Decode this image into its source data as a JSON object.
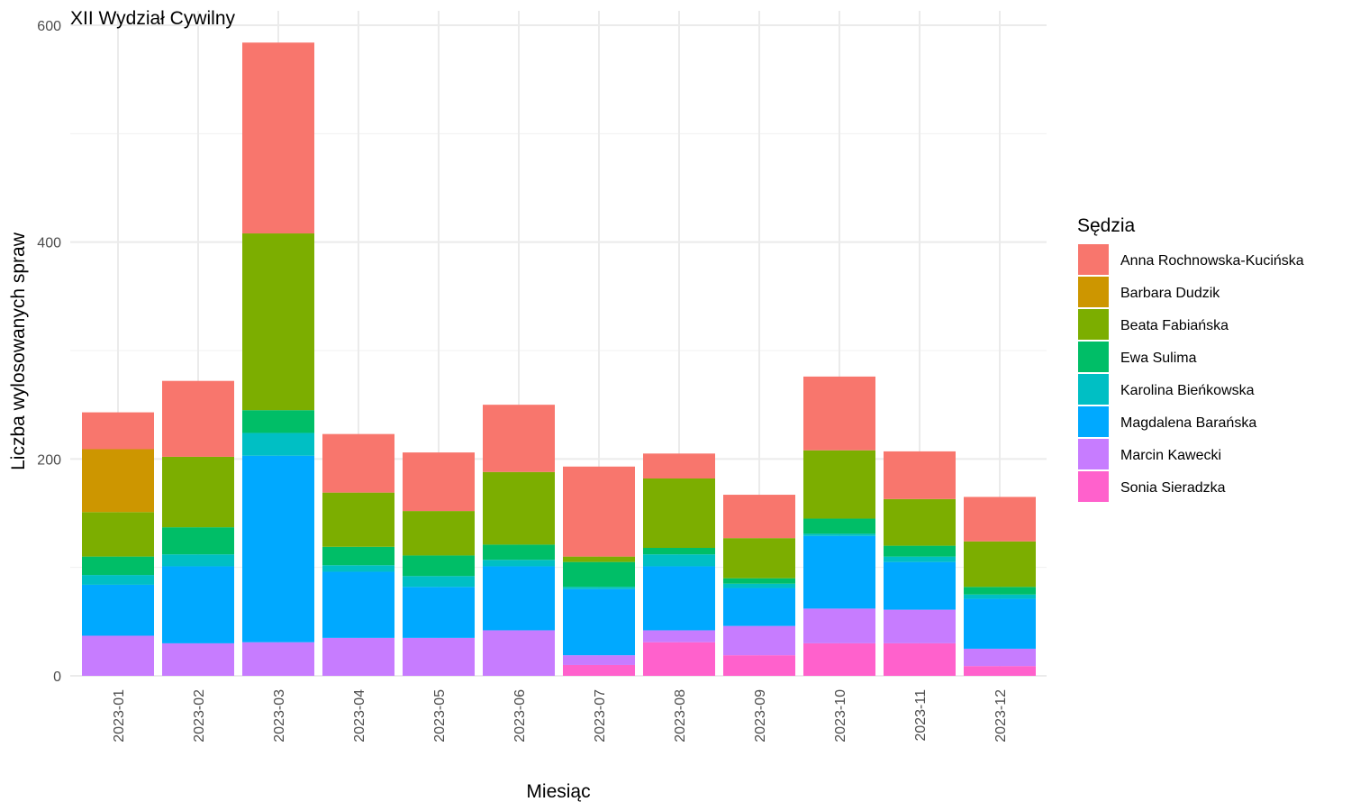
{
  "chart_data": {
    "type": "bar",
    "stacked": true,
    "title": "XII Wydział Cywilny",
    "xlabel": "Miesiąc",
    "ylabel": "Liczba wylosowanych spraw",
    "ylim": [
      0,
      600
    ],
    "yticks": [
      0,
      200,
      400,
      600
    ],
    "grid": true,
    "legend_title": "Sędzia",
    "legend_position": "right",
    "categories": [
      "2023-01",
      "2023-02",
      "2023-03",
      "2023-04",
      "2023-05",
      "2023-06",
      "2023-07",
      "2023-08",
      "2023-09",
      "2023-10",
      "2023-11",
      "2023-12"
    ],
    "series": [
      {
        "name": "Anna Rochnowska-Kucińska",
        "color": "#F8766D",
        "values": [
          34,
          70,
          176,
          54,
          54,
          62,
          83,
          23,
          40,
          68,
          44,
          41
        ]
      },
      {
        "name": "Barbara Dudzik",
        "color": "#CD9600",
        "values": [
          58,
          0,
          0,
          0,
          0,
          0,
          0,
          0,
          0,
          0,
          0,
          0
        ]
      },
      {
        "name": "Beata Fabiańska",
        "color": "#7CAE00",
        "values": [
          41,
          65,
          163,
          50,
          41,
          67,
          5,
          64,
          37,
          63,
          43,
          42
        ]
      },
      {
        "name": "Ewa Sulima",
        "color": "#00BE67",
        "values": [
          17,
          25,
          21,
          17,
          19,
          14,
          23,
          6,
          5,
          14,
          10,
          7
        ]
      },
      {
        "name": "Karolina Bieńkowska",
        "color": "#00BFC4",
        "values": [
          9,
          11,
          21,
          6,
          10,
          6,
          2,
          11,
          4,
          2,
          5,
          4
        ]
      },
      {
        "name": "Magdalena Barańska",
        "color": "#00A9FF",
        "values": [
          47,
          71,
          172,
          61,
          47,
          59,
          61,
          59,
          35,
          67,
          44,
          46
        ]
      },
      {
        "name": "Marcin Kawecki",
        "color": "#C77CFF",
        "values": [
          37,
          30,
          31,
          35,
          35,
          42,
          9,
          11,
          27,
          32,
          31,
          16
        ]
      },
      {
        "name": "Sonia Sieradzka",
        "color": "#FF61CC",
        "values": [
          0,
          0,
          0,
          0,
          0,
          0,
          10,
          31,
          19,
          30,
          30,
          9
        ]
      }
    ]
  }
}
